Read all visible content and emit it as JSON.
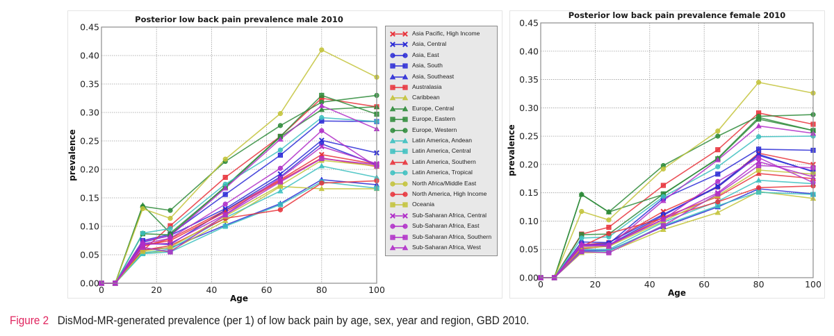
{
  "caption": {
    "figure_label": "Figure 2",
    "text": "DisMod-MR-generated prevalence (per 1) of low back pain by age, sex, year and region, GBD 2010."
  },
  "chart_data": [
    {
      "type": "line",
      "title": "Posterior low back pain prevalence male 2010",
      "xlabel": "Age",
      "ylabel": "prevalence",
      "xlim": [
        0,
        100
      ],
      "ylim": [
        0,
        0.45
      ],
      "xticks": [
        "0",
        "20",
        "40",
        "60",
        "80",
        "100"
      ],
      "yticks": [
        "0.00",
        "0.05",
        "0.10",
        "0.15",
        "0.20",
        "0.25",
        "0.30",
        "0.35",
        "0.40",
        "0.45"
      ],
      "grid": true,
      "legend": "right-outside",
      "x": [
        0,
        5,
        15,
        25,
        45,
        65,
        80,
        100
      ],
      "series": [
        {
          "name": "Asia Pacific, High Income",
          "color": "#e8333b",
          "marker": "x",
          "values": [
            0,
            0,
            0.065,
            0.078,
            0.128,
            0.182,
            0.226,
            0.209
          ]
        },
        {
          "name": "Asia, Central",
          "color": "#2b2bd6",
          "marker": "x",
          "values": [
            0,
            0,
            0.072,
            0.084,
            0.131,
            0.192,
            0.251,
            0.229
          ]
        },
        {
          "name": "Asia, East",
          "color": "#2b2bd6",
          "marker": "o",
          "values": [
            0,
            0,
            0.07,
            0.068,
            0.128,
            0.187,
            0.245,
            0.208
          ]
        },
        {
          "name": "Asia, South",
          "color": "#2b2bd6",
          "marker": "s",
          "values": [
            0,
            0,
            0.075,
            0.086,
            0.156,
            0.225,
            0.285,
            0.284
          ]
        },
        {
          "name": "Asia, Southeast",
          "color": "#2b2bd6",
          "marker": "^",
          "values": [
            0,
            0,
            0.059,
            0.062,
            0.102,
            0.14,
            0.182,
            0.173
          ]
        },
        {
          "name": "Australasia",
          "color": "#e8333b",
          "marker": "s",
          "values": [
            0,
            0,
            0.057,
            0.101,
            0.186,
            0.258,
            0.325,
            0.31
          ]
        },
        {
          "name": "Caribbean",
          "color": "#c3c33a",
          "marker": "^",
          "values": [
            0,
            0,
            0.054,
            0.057,
            0.11,
            0.17,
            0.166,
            0.166
          ]
        },
        {
          "name": "Europe, Central",
          "color": "#2e8b3a",
          "marker": "^",
          "values": [
            0,
            0,
            0.137,
            0.088,
            0.169,
            0.257,
            0.305,
            0.31
          ]
        },
        {
          "name": "Europe, Eastern",
          "color": "#2e8b3a",
          "marker": "s",
          "values": [
            0,
            0,
            0.087,
            0.085,
            0.17,
            0.258,
            0.33,
            0.297
          ]
        },
        {
          "name": "Europe, Western",
          "color": "#2e8b3a",
          "marker": "o",
          "values": [
            0,
            0,
            0.135,
            0.128,
            0.214,
            0.277,
            0.318,
            0.33
          ]
        },
        {
          "name": "Latin America, Andean",
          "color": "#3cc0c0",
          "marker": "^",
          "values": [
            0,
            0,
            0.053,
            0.06,
            0.115,
            0.162,
            0.206,
            0.186
          ]
        },
        {
          "name": "Latin America, Central",
          "color": "#3cc0c0",
          "marker": "s",
          "values": [
            0,
            0,
            0.052,
            0.055,
            0.1,
            0.138,
            0.178,
            0.167
          ]
        },
        {
          "name": "Latin America, Southern",
          "color": "#e8333b",
          "marker": "^",
          "values": [
            0,
            0,
            0.066,
            0.075,
            0.125,
            0.18,
            0.22,
            0.205
          ]
        },
        {
          "name": "Latin America, Tropical",
          "color": "#3cc0c0",
          "marker": "o",
          "values": [
            0,
            0,
            0.088,
            0.096,
            0.174,
            0.234,
            0.291,
            0.284
          ]
        },
        {
          "name": "North Africa/Middle East",
          "color": "#c3c33a",
          "marker": "o",
          "values": [
            0,
            0,
            0.131,
            0.114,
            0.218,
            0.298,
            0.41,
            0.362
          ]
        },
        {
          "name": "North America, High Income",
          "color": "#e8333b",
          "marker": "o",
          "values": [
            0,
            0,
            0.058,
            0.066,
            0.114,
            0.129,
            0.176,
            0.18
          ]
        },
        {
          "name": "Oceania",
          "color": "#c3c33a",
          "marker": "s",
          "values": [
            0,
            0,
            0.056,
            0.063,
            0.118,
            0.172,
            0.216,
            0.206
          ]
        },
        {
          "name": "Sub-Saharan Africa, Central",
          "color": "#b02ec8",
          "marker": "x",
          "values": [
            0,
            0,
            0.068,
            0.07,
            0.121,
            0.185,
            0.24,
            0.21
          ]
        },
        {
          "name": "Sub-Saharan Africa, East",
          "color": "#b02ec8",
          "marker": "o",
          "values": [
            0,
            0,
            0.069,
            0.079,
            0.139,
            0.202,
            0.268,
            0.205
          ]
        },
        {
          "name": "Sub-Saharan Africa, Southern",
          "color": "#b02ec8",
          "marker": "s",
          "values": [
            0,
            0,
            0.063,
            0.055,
            0.12,
            0.178,
            0.219,
            0.208
          ]
        },
        {
          "name": "Sub-Saharan Africa, West",
          "color": "#b02ec8",
          "marker": "^",
          "values": [
            0,
            0,
            0.074,
            0.083,
            0.167,
            0.253,
            0.312,
            0.271
          ]
        }
      ]
    },
    {
      "type": "line",
      "title": "Posterior low back pain prevalence female 2010",
      "xlabel": "Age",
      "ylabel": "prevalence",
      "xlim": [
        0,
        100
      ],
      "ylim": [
        0,
        0.45
      ],
      "xticks": [
        "0",
        "20",
        "40",
        "60",
        "80",
        "100"
      ],
      "yticks": [
        "0.00",
        "0.05",
        "0.10",
        "0.15",
        "0.20",
        "0.25",
        "0.30",
        "0.35",
        "0.40",
        "0.45"
      ],
      "grid": true,
      "legend": "none",
      "x": [
        0,
        5,
        15,
        25,
        45,
        65,
        80,
        100
      ],
      "series": [
        {
          "name": "Asia Pacific, High Income",
          "color": "#e8333b",
          "marker": "x",
          "values": [
            0,
            0,
            0.058,
            0.062,
            0.117,
            0.16,
            0.22,
            0.2
          ]
        },
        {
          "name": "Asia, Central",
          "color": "#2b2bd6",
          "marker": "x",
          "values": [
            0,
            0,
            0.057,
            0.058,
            0.11,
            0.162,
            0.218,
            0.187
          ]
        },
        {
          "name": "Asia, East",
          "color": "#2b2bd6",
          "marker": "o",
          "values": [
            0,
            0,
            0.063,
            0.062,
            0.112,
            0.16,
            0.216,
            0.188
          ]
        },
        {
          "name": "Asia, South",
          "color": "#2b2bd6",
          "marker": "s",
          "values": [
            0,
            0,
            0.058,
            0.06,
            0.14,
            0.183,
            0.227,
            0.225
          ]
        },
        {
          "name": "Asia, Southeast",
          "color": "#2b2bd6",
          "marker": "^",
          "values": [
            0,
            0,
            0.048,
            0.048,
            0.09,
            0.125,
            0.157,
            0.148
          ]
        },
        {
          "name": "Australasia",
          "color": "#e8333b",
          "marker": "s",
          "values": [
            0,
            0,
            0.077,
            0.089,
            0.163,
            0.226,
            0.291,
            0.271
          ]
        },
        {
          "name": "Caribbean",
          "color": "#c3c33a",
          "marker": "^",
          "values": [
            0,
            0,
            0.044,
            0.045,
            0.085,
            0.115,
            0.152,
            0.14
          ]
        },
        {
          "name": "Europe, Central",
          "color": "#2e8b3a",
          "marker": "^",
          "values": [
            0,
            0,
            0.147,
            0.116,
            0.147,
            0.211,
            0.283,
            0.26
          ]
        },
        {
          "name": "Europe, Eastern",
          "color": "#2e8b3a",
          "marker": "s",
          "values": [
            0,
            0,
            0.076,
            0.077,
            0.148,
            0.21,
            0.28,
            0.26
          ]
        },
        {
          "name": "Europe, Western",
          "color": "#2e8b3a",
          "marker": "o",
          "values": [
            0,
            0,
            0.147,
            0.116,
            0.198,
            0.25,
            0.285,
            0.288
          ]
        },
        {
          "name": "Latin America, Andean",
          "color": "#3cc0c0",
          "marker": "^",
          "values": [
            0,
            0,
            0.05,
            0.05,
            0.098,
            0.135,
            0.172,
            0.166
          ]
        },
        {
          "name": "Latin America, Central",
          "color": "#3cc0c0",
          "marker": "s",
          "values": [
            0,
            0,
            0.046,
            0.047,
            0.092,
            0.127,
            0.151,
            0.147
          ]
        },
        {
          "name": "Latin America, Southern",
          "color": "#e8333b",
          "marker": "^",
          "values": [
            0,
            0,
            0.051,
            0.056,
            0.107,
            0.143,
            0.184,
            0.175
          ]
        },
        {
          "name": "Latin America, Tropical",
          "color": "#3cc0c0",
          "marker": "o",
          "values": [
            0,
            0,
            0.07,
            0.072,
            0.143,
            0.196,
            0.249,
            0.25
          ]
        },
        {
          "name": "North Africa/Middle East",
          "color": "#c3c33a",
          "marker": "o",
          "values": [
            0,
            0,
            0.117,
            0.102,
            0.192,
            0.259,
            0.345,
            0.326
          ]
        },
        {
          "name": "North America, High Income",
          "color": "#e8333b",
          "marker": "o",
          "values": [
            0,
            0,
            0.055,
            0.078,
            0.105,
            0.134,
            0.159,
            0.162
          ]
        },
        {
          "name": "Oceania",
          "color": "#c3c33a",
          "marker": "s",
          "values": [
            0,
            0,
            0.053,
            0.055,
            0.1,
            0.145,
            0.19,
            0.183
          ]
        },
        {
          "name": "Sub-Saharan Africa, Central",
          "color": "#b02ec8",
          "marker": "x",
          "values": [
            0,
            0,
            0.055,
            0.057,
            0.103,
            0.15,
            0.205,
            0.178
          ]
        },
        {
          "name": "Sub-Saharan Africa, East",
          "color": "#b02ec8",
          "marker": "o",
          "values": [
            0,
            0,
            0.058,
            0.058,
            0.103,
            0.17,
            0.212,
            0.168
          ]
        },
        {
          "name": "Sub-Saharan Africa, Southern",
          "color": "#b02ec8",
          "marker": "s",
          "values": [
            0,
            0,
            0.046,
            0.044,
            0.092,
            0.148,
            0.198,
            0.194
          ]
        },
        {
          "name": "Sub-Saharan Africa, West",
          "color": "#b02ec8",
          "marker": "^",
          "values": [
            0,
            0,
            0.06,
            0.055,
            0.136,
            0.208,
            0.268,
            0.255
          ]
        }
      ]
    }
  ]
}
